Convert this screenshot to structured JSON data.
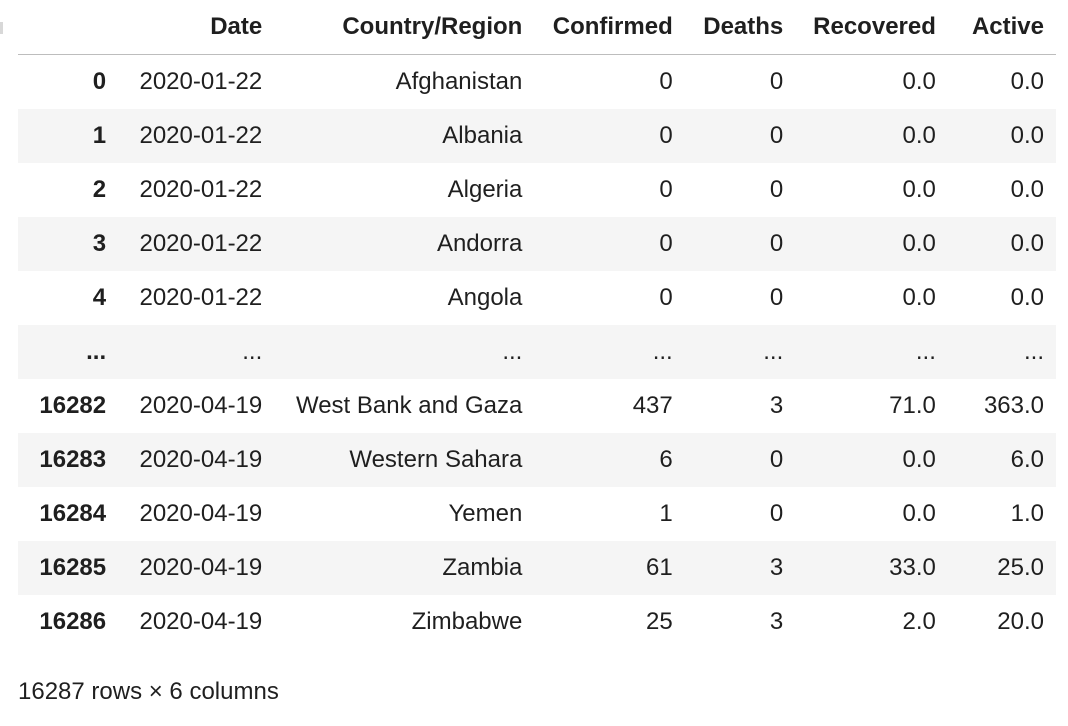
{
  "table": {
    "columns": {
      "index": "",
      "date": "Date",
      "country": "Country/Region",
      "confirmed": "Confirmed",
      "deaths": "Deaths",
      "recovered": "Recovered",
      "active": "Active"
    },
    "rows": [
      {
        "index": "0",
        "date": "2020-01-22",
        "country": "Afghanistan",
        "confirmed": "0",
        "deaths": "0",
        "recovered": "0.0",
        "active": "0.0"
      },
      {
        "index": "1",
        "date": "2020-01-22",
        "country": "Albania",
        "confirmed": "0",
        "deaths": "0",
        "recovered": "0.0",
        "active": "0.0"
      },
      {
        "index": "2",
        "date": "2020-01-22",
        "country": "Algeria",
        "confirmed": "0",
        "deaths": "0",
        "recovered": "0.0",
        "active": "0.0"
      },
      {
        "index": "3",
        "date": "2020-01-22",
        "country": "Andorra",
        "confirmed": "0",
        "deaths": "0",
        "recovered": "0.0",
        "active": "0.0"
      },
      {
        "index": "4",
        "date": "2020-01-22",
        "country": "Angola",
        "confirmed": "0",
        "deaths": "0",
        "recovered": "0.0",
        "active": "0.0"
      },
      {
        "index": "...",
        "date": "...",
        "country": "...",
        "confirmed": "...",
        "deaths": "...",
        "recovered": "...",
        "active": "..."
      },
      {
        "index": "16282",
        "date": "2020-04-19",
        "country": "West Bank and Gaza",
        "confirmed": "437",
        "deaths": "3",
        "recovered": "71.0",
        "active": "363.0"
      },
      {
        "index": "16283",
        "date": "2020-04-19",
        "country": "Western Sahara",
        "confirmed": "6",
        "deaths": "0",
        "recovered": "0.0",
        "active": "6.0"
      },
      {
        "index": "16284",
        "date": "2020-04-19",
        "country": "Yemen",
        "confirmed": "1",
        "deaths": "0",
        "recovered": "0.0",
        "active": "1.0"
      },
      {
        "index": "16285",
        "date": "2020-04-19",
        "country": "Zambia",
        "confirmed": "61",
        "deaths": "3",
        "recovered": "33.0",
        "active": "25.0"
      },
      {
        "index": "16286",
        "date": "2020-04-19",
        "country": "Zimbabwe",
        "confirmed": "25",
        "deaths": "3",
        "recovered": "2.0",
        "active": "20.0"
      }
    ]
  },
  "footer": {
    "shape": "16287 rows × 6 columns"
  }
}
